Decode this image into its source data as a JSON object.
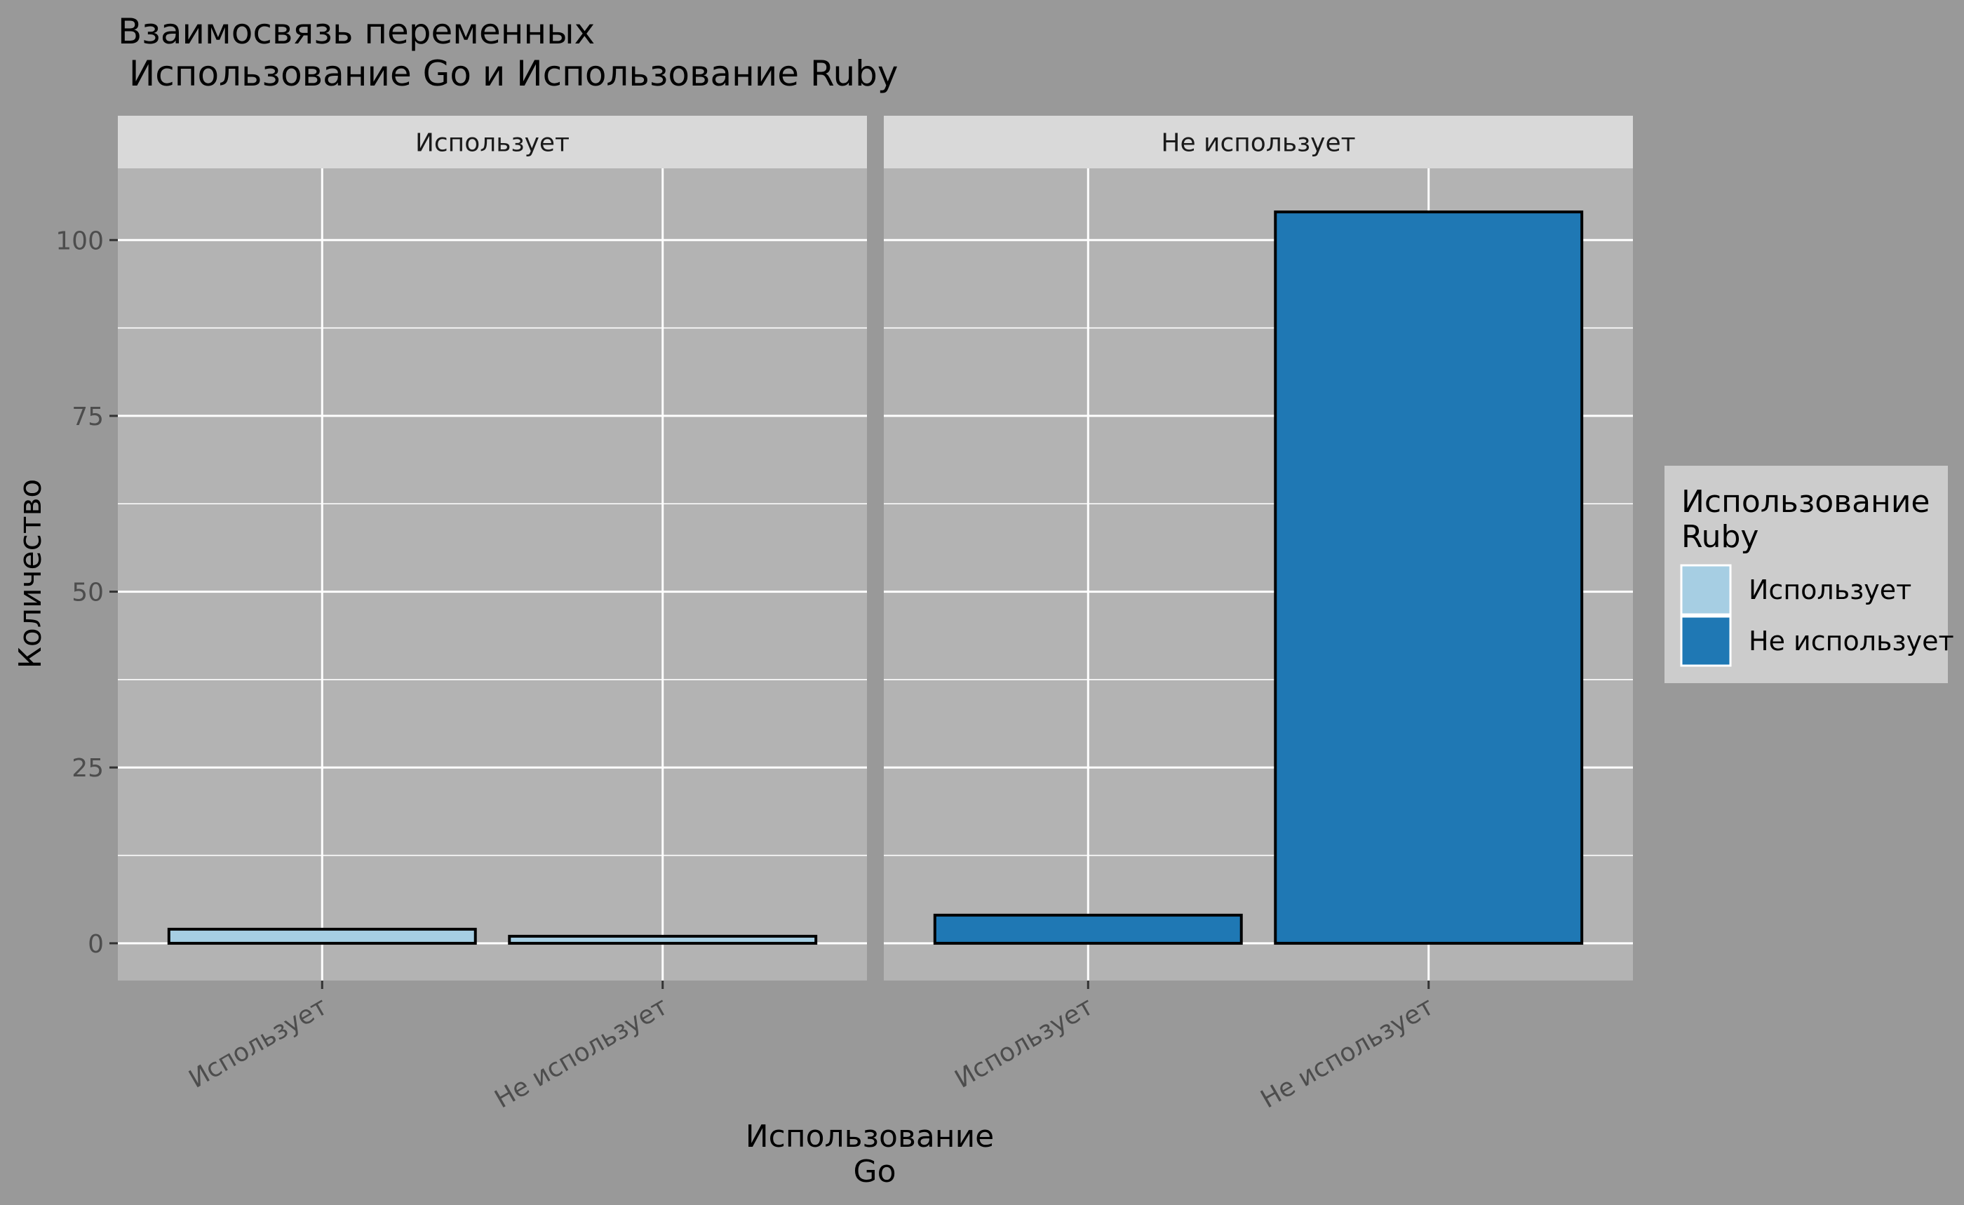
{
  "chart_data": {
    "type": "bar",
    "title_line1": "Взаимосвязь переменных",
    "title_line2": " Использование Go и Использование Ruby",
    "xlabel_line1": "Использование",
    "xlabel_line2": "Go",
    "ylabel": "Количество",
    "ylim": [
      -5.3,
      110.2
    ],
    "yticks": [
      0,
      25,
      50,
      75,
      100
    ],
    "facet_variable": "Использование Go",
    "categories": [
      "Использует",
      "Не использует"
    ],
    "facets": [
      {
        "label": "Использует",
        "bars": [
          {
            "category": "Использует",
            "value": 2,
            "fill_series": "Использует"
          },
          {
            "category": "Не использует",
            "value": 1,
            "fill_series": "Использует"
          }
        ]
      },
      {
        "label": "Не использует",
        "bars": [
          {
            "category": "Использует",
            "value": 4,
            "fill_series": "Не использует"
          },
          {
            "category": "Не использует",
            "value": 104,
            "fill_series": "Не использует"
          }
        ]
      }
    ],
    "legend": {
      "title_line1": "Использование",
      "title_line2": "Ruby",
      "placement": "right",
      "items": [
        {
          "label": "Использует",
          "color": "#a6cee3"
        },
        {
          "label": "Не использует",
          "color": "#1f78b4"
        }
      ]
    },
    "grid": true,
    "colors": {
      "background": "#999999",
      "panel": "#b3b3b3",
      "strip": "#d9d9d9",
      "grid": "#ffffff",
      "legend_bg": "#cccccc"
    }
  }
}
